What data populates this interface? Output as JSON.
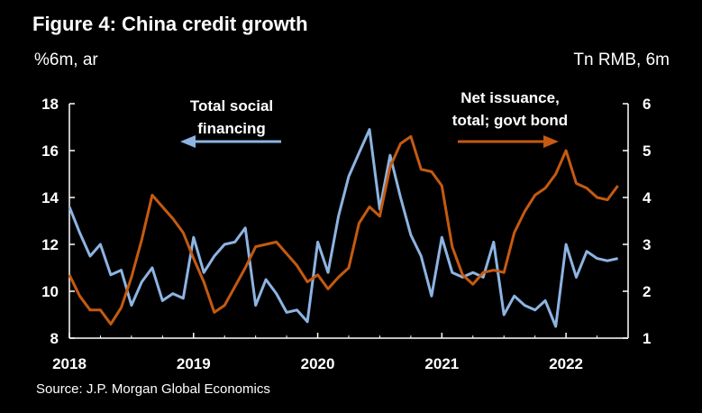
{
  "header": {
    "title": "Figure 4: China credit growth",
    "left_unit": "%6m, ar",
    "right_unit": "Tn RMB, 6m"
  },
  "footer": {
    "source": "Source: J.P. Morgan Global Economics"
  },
  "colors": {
    "tsf": "#8db4e2",
    "bond": "#c55a11",
    "axis": "#ffffff",
    "background": "#000000"
  },
  "chart_data": {
    "type": "line",
    "title": "Figure 4: China credit growth",
    "x_ticks": [
      "2018",
      "2019",
      "2020",
      "2021",
      "2022"
    ],
    "x_range": [
      2018.0,
      2022.5
    ],
    "y_left": {
      "label": "%6m, ar",
      "lim": [
        8,
        18
      ],
      "ticks": [
        "8",
        "10",
        "12",
        "14",
        "16",
        "18"
      ]
    },
    "y_right": {
      "label": "Tn RMB, 6m",
      "lim": [
        1,
        6
      ],
      "ticks": [
        "1",
        "2",
        "3",
        "4",
        "5",
        "6"
      ]
    },
    "annotations": {
      "tsf": [
        "Total social",
        "financing"
      ],
      "bond": [
        "Net issuance,",
        "total; govt bond"
      ]
    },
    "series": [
      {
        "name": "Total social financing",
        "axis": "left",
        "x": [
          2018.0,
          2018.083,
          2018.167,
          2018.25,
          2018.333,
          2018.417,
          2018.5,
          2018.583,
          2018.667,
          2018.75,
          2018.833,
          2018.917,
          2019.0,
          2019.083,
          2019.167,
          2019.25,
          2019.333,
          2019.417,
          2019.5,
          2019.583,
          2019.667,
          2019.75,
          2019.833,
          2019.917,
          2020.0,
          2020.083,
          2020.167,
          2020.25,
          2020.333,
          2020.417,
          2020.5,
          2020.583,
          2020.667,
          2020.75,
          2020.833,
          2020.917,
          2021.0,
          2021.083,
          2021.167,
          2021.25,
          2021.333,
          2021.417,
          2021.5,
          2021.583,
          2021.667,
          2021.75,
          2021.833,
          2021.917,
          2022.0,
          2022.083,
          2022.167,
          2022.25,
          2022.333,
          2022.417
        ],
        "values": [
          13.6,
          12.5,
          11.5,
          12.0,
          10.7,
          10.9,
          9.4,
          10.4,
          11.0,
          9.6,
          9.9,
          9.7,
          12.3,
          10.8,
          11.5,
          12.0,
          12.1,
          12.7,
          9.4,
          10.5,
          9.9,
          9.1,
          9.2,
          8.7,
          12.1,
          10.8,
          13.2,
          14.9,
          15.9,
          16.9,
          13.5,
          15.8,
          14.0,
          12.4,
          11.5,
          9.8,
          12.3,
          10.8,
          10.6,
          10.8,
          10.6,
          12.1,
          9.0,
          9.8,
          9.4,
          9.2,
          9.6,
          8.5,
          12.0,
          10.6,
          11.7,
          11.4,
          11.3,
          11.4
        ]
      },
      {
        "name": "Net issuance, total; govt bond",
        "axis": "right",
        "x": [
          2018.0,
          2018.083,
          2018.167,
          2018.25,
          2018.333,
          2018.417,
          2018.5,
          2018.583,
          2018.667,
          2018.75,
          2018.833,
          2018.917,
          2019.0,
          2019.083,
          2019.167,
          2019.25,
          2019.333,
          2019.417,
          2019.5,
          2019.583,
          2019.667,
          2019.75,
          2019.833,
          2019.917,
          2020.0,
          2020.083,
          2020.167,
          2020.25,
          2020.333,
          2020.417,
          2020.5,
          2020.583,
          2020.667,
          2020.75,
          2020.833,
          2020.917,
          2021.0,
          2021.083,
          2021.167,
          2021.25,
          2021.333,
          2021.417,
          2021.5,
          2021.583,
          2021.667,
          2021.75,
          2021.833,
          2021.917,
          2022.0,
          2022.083,
          2022.167,
          2022.25,
          2022.333,
          2022.417
        ],
        "values": [
          2.35,
          1.9,
          1.6,
          1.6,
          1.3,
          1.65,
          2.3,
          3.1,
          4.05,
          3.8,
          3.55,
          3.25,
          2.7,
          2.2,
          1.55,
          1.7,
          2.1,
          2.5,
          2.95,
          3.0,
          3.05,
          2.8,
          2.55,
          2.2,
          2.35,
          2.05,
          2.3,
          2.5,
          3.45,
          3.8,
          3.6,
          4.65,
          5.15,
          5.3,
          4.6,
          4.55,
          4.25,
          2.95,
          2.35,
          2.15,
          2.4,
          2.45,
          2.4,
          3.25,
          3.7,
          4.05,
          4.2,
          4.5,
          5.0,
          4.3,
          4.2,
          4.0,
          3.95,
          4.25
        ]
      }
    ]
  }
}
